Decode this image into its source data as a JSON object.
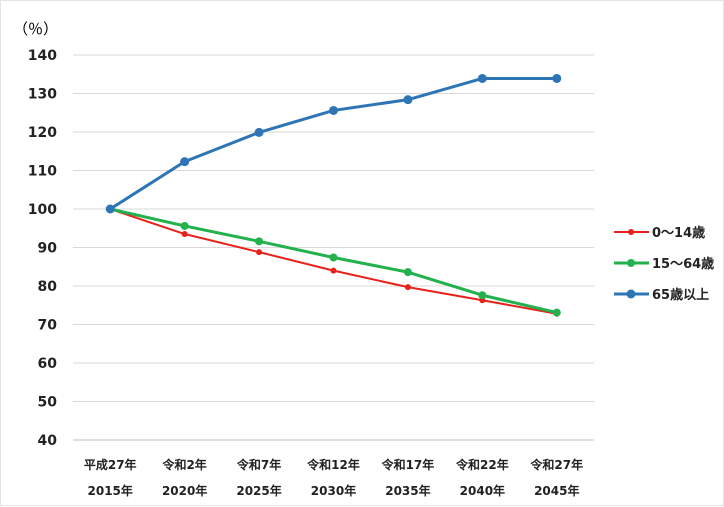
{
  "chart_data": {
    "type": "line",
    "ylabel": "（％）",
    "xlabel": "",
    "categories": [
      [
        "平成27年",
        "2015年"
      ],
      [
        "令和2年",
        "2020年"
      ],
      [
        "令和7年",
        "2025年"
      ],
      [
        "令和12年",
        "2030年"
      ],
      [
        "令和17年",
        "2035年"
      ],
      [
        "令和22年",
        "2040年"
      ],
      [
        "令和27年",
        "2045年"
      ]
    ],
    "ylim": [
      40,
      140
    ],
    "yticks": [
      40,
      50,
      60,
      70,
      80,
      90,
      100,
      110,
      120,
      130,
      140
    ],
    "grid": true,
    "legend_position": "right",
    "series": [
      {
        "name": "0～14歳",
        "color": "#e8221b",
        "values": [
          100,
          93.5,
          88.8,
          84.0,
          79.7,
          76.3,
          72.8
        ]
      },
      {
        "name": "15～64歳",
        "color": "#22b14c",
        "values": [
          100,
          95.6,
          91.6,
          87.4,
          83.6,
          77.6,
          73.1
        ]
      },
      {
        "name": "65歳以上",
        "color": "#2e75b6",
        "values": [
          100,
          112.3,
          119.9,
          125.6,
          128.4,
          133.9,
          133.9
        ]
      }
    ]
  }
}
